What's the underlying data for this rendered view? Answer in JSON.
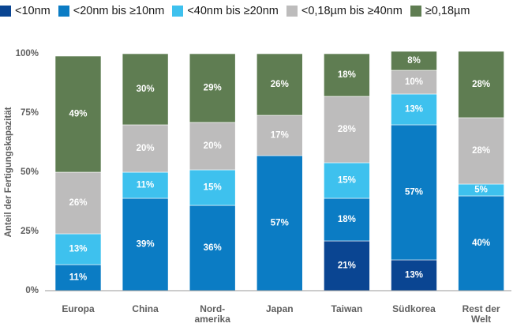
{
  "chart_data": {
    "type": "bar",
    "stacked": true,
    "title": "",
    "xlabel": "",
    "ylabel": "Anteil der Fertigungskapazität",
    "ylim": [
      0,
      100
    ],
    "yticks": [
      "0%",
      "25%",
      "50%",
      "75%",
      "100%"
    ],
    "grid": false,
    "legend_position": "top",
    "categories": [
      "Europa",
      "China",
      "Nord-\namerika",
      "Japan",
      "Taiwan",
      "Südkorea",
      "Rest der\nWelt"
    ],
    "series": [
      {
        "name": "<10nm",
        "color": "#0a4592",
        "values": [
          0,
          0,
          0,
          0,
          21,
          13,
          0
        ],
        "labels": [
          "",
          "",
          "",
          "",
          "21%",
          "13%",
          ""
        ]
      },
      {
        "name": "<20nm bis ≥10nm",
        "color": "#0b7cc4",
        "values": [
          11,
          39,
          36,
          57,
          18,
          57,
          40
        ],
        "labels": [
          "11%",
          "39%",
          "36%",
          "57%",
          "18%",
          "57%",
          "40%"
        ]
      },
      {
        "name": "<40nm bis ≥20nm",
        "color": "#3ec1ee",
        "values": [
          13,
          11,
          15,
          0,
          15,
          13,
          5
        ],
        "labels": [
          "13%",
          "11%",
          "15%",
          "",
          "15%",
          "13%",
          "5%"
        ]
      },
      {
        "name": "<0,18µm bis ≥40nm",
        "color": "#bdbcbc",
        "values": [
          26,
          20,
          20,
          17,
          28,
          10,
          28
        ],
        "labels": [
          "26%",
          "20%",
          "20%",
          "17%",
          "28%",
          "10%",
          "28%"
        ]
      },
      {
        "name": "≥0,18µm",
        "color": "#5f7d52",
        "values": [
          49,
          30,
          29,
          26,
          18,
          8,
          28
        ],
        "labels": [
          "49%",
          "30%",
          "29%",
          "26%",
          "18%",
          "8%",
          "28%"
        ]
      }
    ]
  }
}
